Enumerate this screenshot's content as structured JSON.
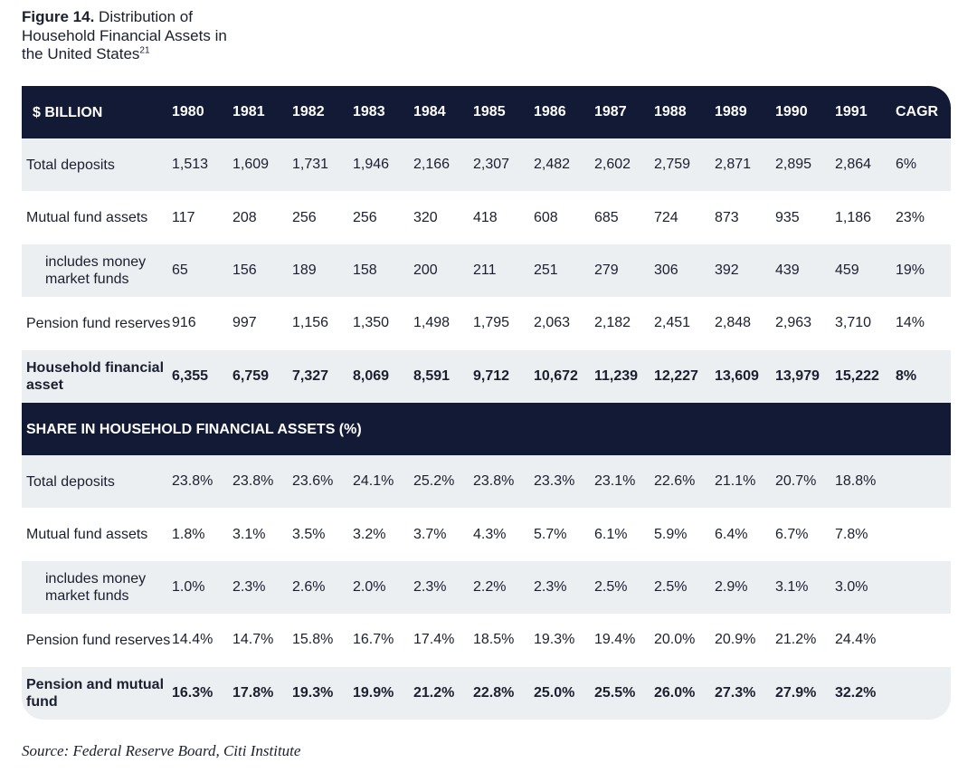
{
  "figure": {
    "label": "Figure 14.",
    "title": "Distribution of Household Financial Assets in the United States",
    "footnote": "21"
  },
  "source": "Source: Federal Reserve Board, Citi Institute",
  "chart_data": {
    "type": "table",
    "title": "Distribution of Household Financial Assets in the United States",
    "sections": [
      {
        "header": "$ BILLION",
        "columns": [
          "1980",
          "1981",
          "1982",
          "1983",
          "1984",
          "1985",
          "1986",
          "1987",
          "1988",
          "1989",
          "1990",
          "1991",
          "CAGR"
        ],
        "rows": [
          {
            "label": "Total deposits",
            "indent": false,
            "bold": false,
            "values": [
              "1,513",
              "1,609",
              "1,731",
              "1,946",
              "2,166",
              "2,307",
              "2,482",
              "2,602",
              "2,759",
              "2,871",
              "2,895",
              "2,864",
              "6%"
            ]
          },
          {
            "label": "Mutual fund assets",
            "indent": false,
            "bold": false,
            "values": [
              "117",
              "208",
              "256",
              "256",
              "320",
              "418",
              "608",
              "685",
              "724",
              "873",
              "935",
              "1,186",
              "23%"
            ]
          },
          {
            "label": "includes money market funds",
            "indent": true,
            "bold": false,
            "values": [
              "65",
              "156",
              "189",
              "158",
              "200",
              "211",
              "251",
              "279",
              "306",
              "392",
              "439",
              "459",
              "19%"
            ]
          },
          {
            "label": "Pension fund reserves",
            "indent": false,
            "bold": false,
            "values": [
              "916",
              "997",
              "1,156",
              "1,350",
              "1,498",
              "1,795",
              "2,063",
              "2,182",
              "2,451",
              "2,848",
              "2,963",
              "3,710",
              "14%"
            ]
          },
          {
            "label": "Household financial asset",
            "indent": false,
            "bold": true,
            "values": [
              "6,355",
              "6,759",
              "7,327",
              "8,069",
              "8,591",
              "9,712",
              "10,672",
              "11,239",
              "12,227",
              "13,609",
              "13,979",
              "15,222",
              "8%"
            ]
          }
        ]
      },
      {
        "header": "SHARE IN HOUSEHOLD FINANCIAL ASSETS (%)",
        "rows": [
          {
            "label": "Total deposits",
            "indent": false,
            "bold": false,
            "values": [
              "23.8%",
              "23.8%",
              "23.6%",
              "24.1%",
              "25.2%",
              "23.8%",
              "23.3%",
              "23.1%",
              "22.6%",
              "21.1%",
              "20.7%",
              "18.8%"
            ]
          },
          {
            "label": "Mutual fund assets",
            "indent": false,
            "bold": false,
            "values": [
              "1.8%",
              "3.1%",
              "3.5%",
              "3.2%",
              "3.7%",
              "4.3%",
              "5.7%",
              "6.1%",
              "5.9%",
              "6.4%",
              "6.7%",
              "7.8%"
            ]
          },
          {
            "label": "includes money market funds",
            "indent": true,
            "bold": false,
            "values": [
              "1.0%",
              "2.3%",
              "2.6%",
              "2.0%",
              "2.3%",
              "2.2%",
              "2.3%",
              "2.5%",
              "2.5%",
              "2.9%",
              "3.1%",
              "3.0%"
            ]
          },
          {
            "label": "Pension fund reserves",
            "indent": false,
            "bold": false,
            "values": [
              "14.4%",
              "14.7%",
              "15.8%",
              "16.7%",
              "17.4%",
              "18.5%",
              "19.3%",
              "19.4%",
              "20.0%",
              "20.9%",
              "21.2%",
              "24.4%"
            ]
          },
          {
            "label": "Pension and mutual fund",
            "indent": false,
            "bold": true,
            "values": [
              "16.3%",
              "17.8%",
              "19.3%",
              "19.9%",
              "21.2%",
              "22.8%",
              "25.0%",
              "25.5%",
              "26.0%",
              "27.3%",
              "27.9%",
              "32.2%"
            ]
          }
        ]
      }
    ]
  },
  "colors": {
    "header_bg": "#121a36",
    "band_bg": "#eceff2",
    "text": "#1b1f2e"
  }
}
